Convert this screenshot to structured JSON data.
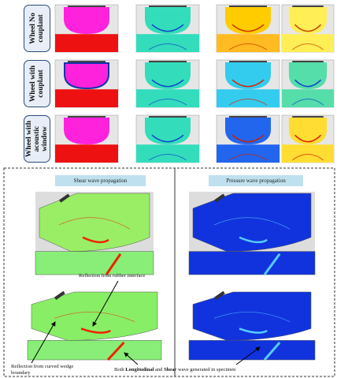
{
  "top_grid": {
    "row_labels": [
      "Wheel No couplant",
      "Wheel with couplant",
      "Wheel with acoustic window"
    ]
  },
  "bottom_panel": {
    "headers": [
      "Shear wave propagation",
      "Pressure wave propagation"
    ],
    "annotations": {
      "rubber_interface": "Reflection from rubber interface",
      "curved_wedge": "Reflection from curved wedge boundary",
      "specimen": [
        "Both",
        "Longitudinal",
        "and",
        "Shear",
        "wave generated in specimen"
      ]
    }
  }
}
